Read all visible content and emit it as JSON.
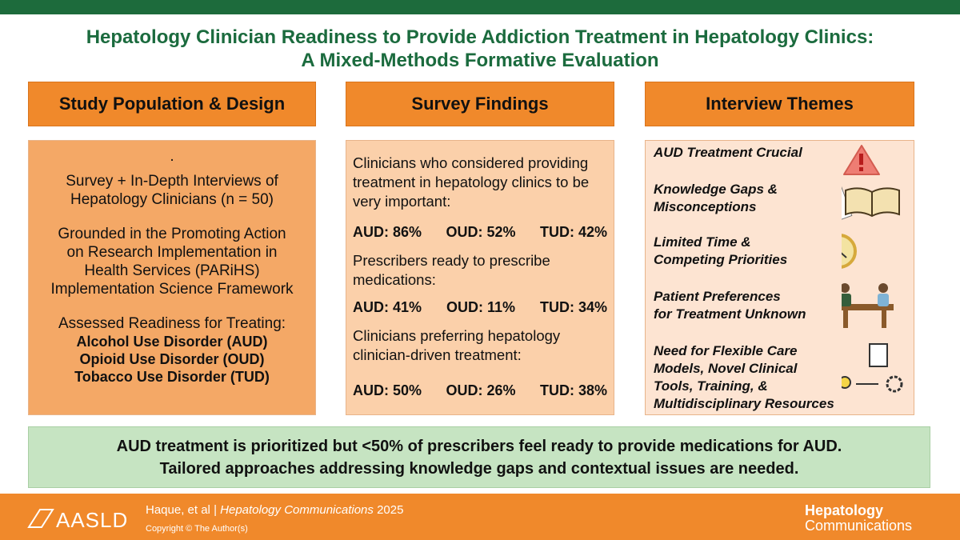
{
  "header": {
    "title_lines": [
      "Hepatology Clinician Readiness to Provide Addiction Treatment in Hepatology Clinics:",
      "A Mixed-Methods Formative Evaluation"
    ]
  },
  "study": {
    "heading": "Study Population & Design",
    "bullet": ".",
    "design_lines": [
      "Survey + In-Depth Interviews of",
      "Hepatology Clinicians (n = 50)"
    ],
    "framework_lines": [
      "Grounded in the Promoting Action",
      "on Research Implementation in",
      "Health Services (PARiHS)",
      "Implementation Science Framework"
    ],
    "assessed": "Assessed Readiness for Treating:",
    "disorders": [
      "Alcohol Use Disorder (AUD)",
      "Opioid Use Disorder (OUD)",
      "Tobacco Use Disorder (TUD)"
    ]
  },
  "survey": {
    "heading": "Survey Findings",
    "findings": [
      {
        "lines": [
          "Clinicians who considered providing",
          "treatment in hepatology clinics to be",
          "very important:"
        ],
        "results": [
          "AUD: 86%",
          "OUD: 52%",
          "TUD: 42%"
        ]
      },
      {
        "lines": [
          "Prescribers ready to prescribe",
          "medications:"
        ],
        "results": [
          "AUD: 41%",
          "OUD: 11%",
          "TUD: 34%"
        ]
      },
      {
        "lines": [
          "Clinicians preferring hepatology",
          "clinician-driven treatment:"
        ],
        "results": [
          "AUD: 50%",
          "OUD: 26%",
          "TUD: 38%"
        ]
      }
    ]
  },
  "interviews": {
    "heading": "Interview Themes",
    "themes": [
      {
        "lines": [
          "AUD Treatment Crucial"
        ]
      },
      {
        "lines": [
          "Knowledge Gaps &",
          "Misconceptions"
        ]
      },
      {
        "lines": [
          "Limited Time &",
          "Competing Priorities"
        ]
      },
      {
        "lines": [
          "Patient Preferences",
          "for Treatment Unknown"
        ]
      },
      {
        "lines": [
          "Need for Flexible Care",
          "Models, Novel Clinical",
          "Tools, Training, &",
          "Multidisciplinary Resources"
        ]
      }
    ]
  },
  "conclusion": {
    "lines": [
      "AUD treatment is prioritized but <50% of prescribers feel ready to provide medications for AUD.",
      "Tailored approaches addressing knowledge gaps and contextual issues are needed."
    ]
  },
  "footer": {
    "authors": "Haque, et al",
    "separator": "|",
    "journal": "Hepatology Communications",
    "year": "2025",
    "copyright": "Copyright © The Author(s)",
    "logo_left": "AASLD",
    "logo_right": [
      "Hepatology",
      "Communications"
    ]
  }
}
